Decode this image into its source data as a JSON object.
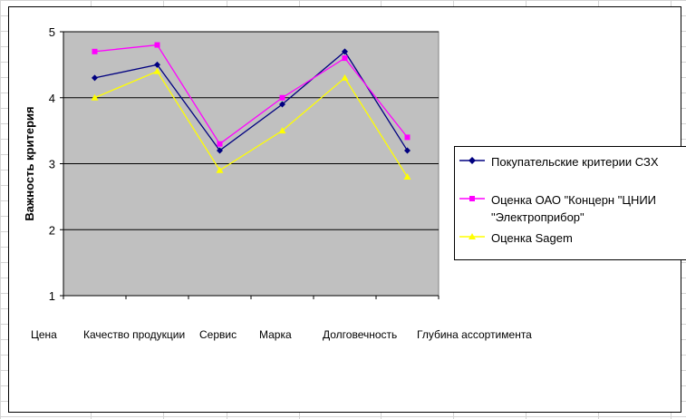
{
  "chart_data": {
    "type": "line",
    "ylabel": "Важность критерия",
    "ylim": [
      1,
      5
    ],
    "yticks": [
      "1",
      "2",
      "3",
      "4",
      "5"
    ],
    "categories": [
      "Цена",
      "Качество продукции",
      "Сервис",
      "Марка",
      "Долговечность",
      "Глубина ассортимента"
    ],
    "grid": true,
    "legend_position": "right",
    "plot_background": "#c0c0c0",
    "series": [
      {
        "name": "Покупательские критерии СЗХ",
        "color": "#000080",
        "marker": "diamond",
        "values": [
          4.3,
          4.5,
          3.2,
          3.9,
          4.7,
          3.2
        ]
      },
      {
        "name": "Оценка ОАО \"Концерн \"ЦНИИ \"Электроприбор\"",
        "color": "#ff00ff",
        "marker": "square",
        "values": [
          4.7,
          4.8,
          3.3,
          4.0,
          4.6,
          3.4
        ]
      },
      {
        "name": "Оценка Sagem",
        "color": "#ffff00",
        "marker": "triangle",
        "values": [
          4.0,
          4.4,
          2.9,
          3.5,
          4.3,
          2.8
        ]
      }
    ]
  }
}
